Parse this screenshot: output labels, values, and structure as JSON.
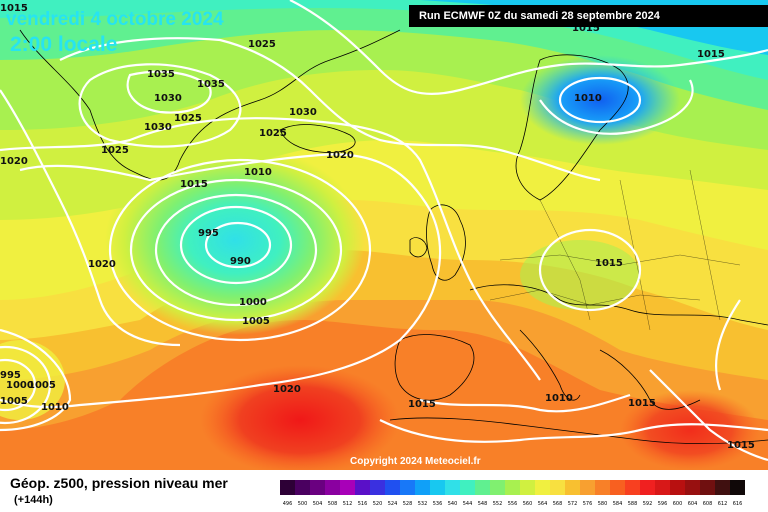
{
  "header": {
    "date": "vendredi 4 octobre 2024",
    "time": "2:00 locale",
    "run": "Run ECMWF 0Z du samedi 28 septembre 2024"
  },
  "copyright": "Copyright 2024 Meteociel.fr",
  "legend": {
    "title": "Géop. z500, pression niveau mer",
    "lead": "(+144h)",
    "levels": [
      "496",
      "500",
      "504",
      "508",
      "512",
      "516",
      "520",
      "524",
      "528",
      "532",
      "536",
      "540",
      "544",
      "548",
      "552",
      "556",
      "560",
      "564",
      "568",
      "572",
      "576",
      "580",
      "584",
      "588",
      "592",
      "596",
      "600",
      "604",
      "608",
      "612",
      "616"
    ],
    "colors": [
      "#2d0036",
      "#4a0060",
      "#6a0080",
      "#8a00a0",
      "#a800b8",
      "#5a10c8",
      "#3a30e0",
      "#2050f0",
      "#1878f8",
      "#10a0f8",
      "#18c8f0",
      "#30e0e8",
      "#40f0c0",
      "#60f090",
      "#80f070",
      "#a8f050",
      "#d0f040",
      "#f0f040",
      "#f8e040",
      "#f8c030",
      "#f8a030",
      "#f88028",
      "#f86020",
      "#f84020",
      "#f02020",
      "#d81818",
      "#b81010",
      "#981010",
      "#701010",
      "#401010",
      "#100808"
    ]
  },
  "map": {
    "isobars": [
      "1015",
      "1025",
      "1035",
      "1030",
      "1035",
      "1025",
      "1030",
      "1025",
      "1030",
      "1020",
      "1025",
      "1020",
      "1015",
      "1010",
      "995",
      "990",
      "1020",
      "1000",
      "1005",
      "1020",
      "995",
      "1005",
      "1000",
      "1005",
      "1010",
      "1015",
      "1010",
      "1015",
      "1015",
      "1015",
      "1015",
      "1010",
      "1015"
    ]
  }
}
